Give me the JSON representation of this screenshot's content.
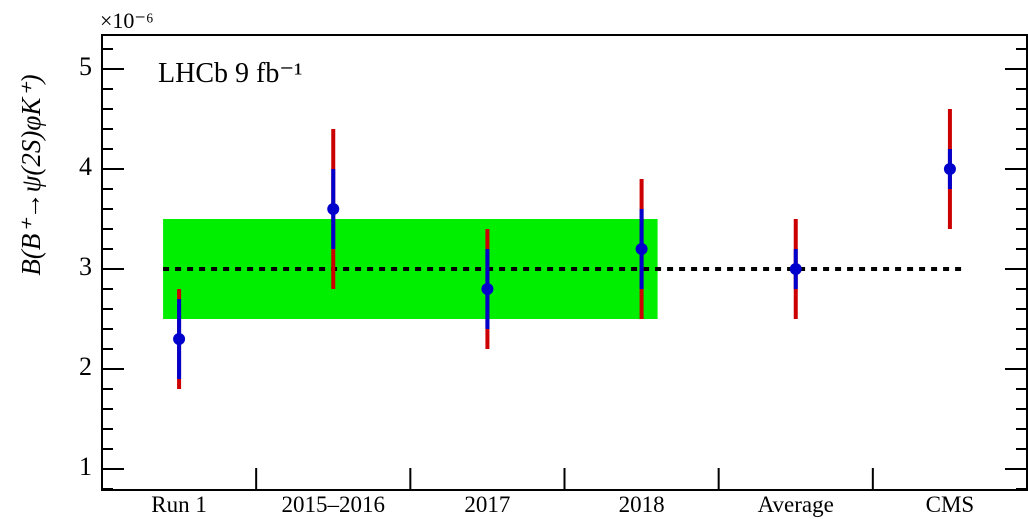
{
  "chart_data": {
    "type": "errorbar",
    "ylabel": "B(B⁺→ψ(2S)φK⁺)",
    "multiplier": "×10⁻⁶",
    "annotation": "LHCb 9 fb⁻¹",
    "categories": [
      "Run 1",
      "2015–2016",
      "2017",
      "2018",
      "Average",
      "CMS"
    ],
    "values": [
      2.3,
      3.6,
      2.8,
      3.2,
      3.0,
      4.0
    ],
    "errors_total": [
      0.5,
      0.8,
      0.6,
      0.7,
      0.5,
      0.6
    ],
    "errors_stat": [
      0.4,
      0.4,
      0.4,
      0.4,
      0.2,
      0.2
    ],
    "color": "#0000cc",
    "total_color": "#cc0000",
    "stat_color": "#0000cc",
    "band": [
      2.5,
      3.5
    ],
    "band_color": "#00ee00",
    "reference": 3.0,
    "ylim": [
      0.79,
      5.34
    ],
    "yticks": [
      1,
      2,
      3,
      4,
      5
    ],
    "yminorticks": [
      0.8,
      1.2,
      1.4,
      1.6,
      1.8,
      2.2,
      2.4,
      2.6,
      2.8,
      3.2,
      3.4,
      3.6,
      3.8,
      4.2,
      4.4,
      4.6,
      4.8,
      5.2
    ]
  }
}
